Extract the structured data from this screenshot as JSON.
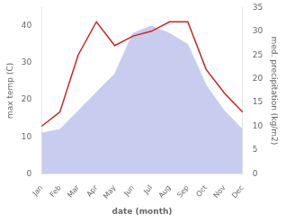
{
  "chart_data": {
    "type": "line",
    "xlabel": "date (month)",
    "ylabel": "max temp (C)",
    "y2label": "med. precipitation (kg/m2)",
    "categories": [
      "Jan",
      "Feb",
      "Mar",
      "Apr",
      "May",
      "Jun",
      "Jul",
      "Aug",
      "Sep",
      "Oct",
      "Nov",
      "Dec"
    ],
    "series": [
      {
        "type": "area",
        "color": "#c8ccee",
        "values": [
          11,
          12,
          17,
          22,
          27,
          38,
          40,
          38,
          35,
          24,
          17,
          12
        ]
      },
      {
        "type": "line",
        "color": "#cc2222",
        "axis": "y2",
        "values": [
          10,
          13,
          25,
          32,
          27,
          29,
          30,
          32,
          32,
          22,
          17,
          13
        ]
      }
    ],
    "ylim": [
      0,
      45
    ],
    "yticks": [
      0,
      10,
      20,
      30,
      40
    ],
    "y2lim": [
      0,
      35
    ],
    "y2ticks": [
      0,
      5,
      10,
      15,
      20,
      25,
      30,
      35
    ],
    "grid": false
  }
}
